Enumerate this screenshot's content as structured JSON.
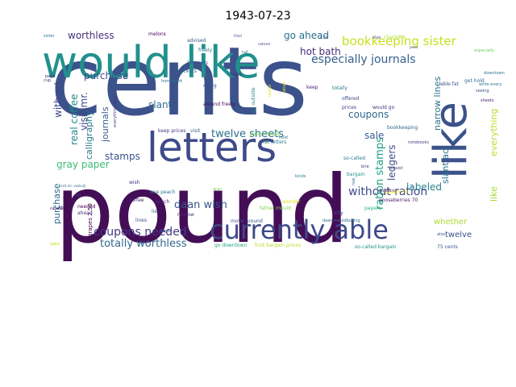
{
  "chart_data": {
    "type": "wordcloud",
    "title": "1943-07-23",
    "words": [
      {
        "text": "cents",
        "weight": 100,
        "color": "#3b528b"
      },
      {
        "text": "pound",
        "weight": 98,
        "color": "#440e57"
      },
      {
        "text": "would like",
        "weight": 62,
        "color": "#21908d"
      },
      {
        "text": "letters",
        "weight": 50,
        "color": "#3e4a89"
      },
      {
        "text": "like",
        "weight": 47,
        "color": "#3b528b"
      },
      {
        "text": "currently able",
        "weight": 40,
        "color": "#3e4a89"
      },
      {
        "text": "bookkeeping sister",
        "weight": 16,
        "color": "#c8e020"
      },
      {
        "text": "especially journals",
        "weight": 16,
        "color": "#355f8d"
      },
      {
        "text": "twelve sheets",
        "weight": 15,
        "color": "#2c728e"
      },
      {
        "text": "coupons needed",
        "weight": 15,
        "color": "#443a83"
      },
      {
        "text": "without ration",
        "weight": 15,
        "color": "#3e4a89"
      },
      {
        "text": "totally worthless",
        "weight": 13,
        "color": "#31688e"
      },
      {
        "text": "daan wish",
        "weight": 13,
        "color": "#39568c"
      },
      {
        "text": "ration stamps",
        "weight": 13,
        "color": "#20a386"
      },
      {
        "text": "worthless",
        "weight": 12,
        "color": "#46327e"
      },
      {
        "text": "go ahead",
        "weight": 12,
        "color": "#2d708e"
      },
      {
        "text": "hot bath",
        "weight": 12,
        "color": "#472c7a"
      },
      {
        "text": "purchase",
        "weight": 12,
        "color": "#3f4889"
      },
      {
        "text": "visit mr.",
        "weight": 12,
        "color": "#414487"
      },
      {
        "text": "without",
        "weight": 12,
        "color": "#404688"
      },
      {
        "text": "real coffee",
        "weight": 12,
        "color": "#24868e"
      },
      {
        "text": "calligraphy",
        "weight": 11,
        "color": "#2a788e"
      },
      {
        "text": "journals",
        "weight": 11,
        "color": "#375b8d"
      },
      {
        "text": "slant",
        "weight": 12,
        "color": "#2f6c8e"
      },
      {
        "text": "gray paper",
        "weight": 12,
        "color": "#3dbc74"
      },
      {
        "text": "stamps",
        "weight": 12,
        "color": "#3b528b"
      },
      {
        "text": "coupons",
        "weight": 12,
        "color": "#31688e"
      },
      {
        "text": "sale",
        "weight": 12,
        "color": "#355f8d"
      },
      {
        "text": "ledgers",
        "weight": 12,
        "color": "#3e4c8a"
      },
      {
        "text": "labeled",
        "weight": 12,
        "color": "#26828e"
      },
      {
        "text": "narrow lines",
        "weight": 11,
        "color": "#2e6f8e"
      },
      {
        "text": "slant ac",
        "weight": 11,
        "color": "#2a768e"
      },
      {
        "text": "everything",
        "weight": 11,
        "color": "#b5de2b"
      },
      {
        "text": "like",
        "weight": 11,
        "color": "#a5db36"
      },
      {
        "text": "whether",
        "weight": 10,
        "color": "#addc30"
      },
      {
        "text": "twelve",
        "weight": 10,
        "color": "#3b528b"
      },
      {
        "text": "purchase",
        "weight": 11,
        "color": "#31688e"
      },
      {
        "text": "grapes 2.50",
        "weight": 7,
        "color": "#440154"
      },
      {
        "text": "one peach",
        "weight": 6,
        "color": "#2a788e"
      },
      {
        "text": "peach",
        "weight": 6,
        "color": "#482878"
      },
      {
        "text": "keep prices",
        "weight": 6,
        "color": "#453781"
      },
      {
        "text": "visit",
        "weight": 6,
        "color": "#34618d"
      },
      {
        "text": "peter mould",
        "weight": 6,
        "color": "#7ad151"
      },
      {
        "text": "fat letters",
        "weight": 6,
        "color": "#287d8e"
      },
      {
        "text": "bookkeeping",
        "weight": 6,
        "color": "#31688e"
      },
      {
        "text": "so-called",
        "weight": 6,
        "color": "#2a788e"
      },
      {
        "text": "bargain",
        "weight": 6,
        "color": "#1f948c"
      },
      {
        "text": "around freely",
        "weight": 6,
        "color": "#46085c"
      },
      {
        "text": "50 cents",
        "weight": 6,
        "color": "#3e4a89"
      },
      {
        "text": "70 cents",
        "weight": 6,
        "color": "#31688e"
      },
      {
        "text": "advised",
        "weight": 6,
        "color": "#39558c"
      },
      {
        "text": "freely",
        "weight": 6,
        "color": "#2b758e"
      },
      {
        "text": "cake",
        "weight": 6,
        "color": "#472d7b"
      },
      {
        "text": "dying",
        "weight": 6,
        "color": "#3b528b"
      },
      {
        "text": "homework",
        "weight": 5,
        "color": "#2c718e"
      },
      {
        "text": "wish",
        "weight": 6,
        "color": "#46337e"
      },
      {
        "text": "coffee",
        "weight": 6,
        "color": "#482173"
      },
      {
        "text": "lie",
        "weight": 6,
        "color": "#2d708e"
      },
      {
        "text": "needed",
        "weight": 6,
        "color": "#440154"
      },
      {
        "text": "ahead",
        "weight": 6,
        "color": "#453581"
      },
      {
        "text": "lines",
        "weight": 6,
        "color": "#3c4f8a"
      },
      {
        "text": "father mould",
        "weight": 6,
        "color": "#7fd34e"
      },
      {
        "text": "move around",
        "weight": 6,
        "color": "#3b528b"
      },
      {
        "text": "go downtown",
        "weight": 6,
        "color": "#21a685"
      },
      {
        "text": "fruit bargain prices",
        "weight": 6,
        "color": "#b8de29"
      },
      {
        "text": "so-called bargain",
        "weight": 6,
        "color": "#20928c"
      },
      {
        "text": "75 cents",
        "weight": 6,
        "color": "#3b528b"
      },
      {
        "text": "gooseberries 70",
        "weight": 6,
        "color": "#481a6c"
      },
      {
        "text": "daan mouldbuking",
        "weight": 5,
        "color": "#2e6e8e"
      },
      {
        "text": "wonder",
        "weight": 6,
        "color": "#dde318"
      },
      {
        "text": "narrow",
        "weight": 6,
        "color": "#482878"
      },
      {
        "text": "papers",
        "weight": 6,
        "color": "#29af7f"
      },
      {
        "text": "silly",
        "weight": 6,
        "color": "#3e4a89"
      },
      {
        "text": "peach 50",
        "weight": 6,
        "color": "#fde725"
      },
      {
        "text": "totally",
        "weight": 6,
        "color": "#2a788e"
      },
      {
        "text": "get hold",
        "weight": 6,
        "color": "#31688e"
      },
      {
        "text": "able fat",
        "weight": 6,
        "color": "#3b528b"
      },
      {
        "text": "downtown",
        "weight": 5,
        "color": "#2a788e"
      },
      {
        "text": "keep",
        "weight": 6,
        "color": "#481f70"
      },
      {
        "text": "prices",
        "weight": 6,
        "color": "#414487"
      },
      {
        "text": "offered",
        "weight": 6,
        "color": "#3e4a89"
      },
      {
        "text": "would go",
        "weight": 6,
        "color": "#46317e"
      },
      {
        "text": "especially",
        "weight": 5,
        "color": "#6ccd5a"
      },
      {
        "text": "charlotte",
        "weight": 6,
        "color": "#b0dd2f"
      },
      {
        "text": "else",
        "weight": 5,
        "color": "#3b528b"
      },
      {
        "text": "melons",
        "weight": 6,
        "color": "#440154"
      },
      {
        "text": "sister",
        "weight": 5,
        "color": "#2a788e"
      },
      {
        "text": "cup",
        "weight": 5,
        "color": "#443983"
      },
      {
        "text": "page",
        "weight": 5,
        "color": "#482475"
      },
      {
        "text": "go outside",
        "weight": 6,
        "color": "#25858e"
      },
      {
        "text": "everything else",
        "weight": 5,
        "color": "#46337e"
      },
      {
        "text": "bath",
        "weight": 6,
        "color": "#3b528b"
      },
      {
        "text": "spite",
        "weight": 5,
        "color": "#c2df23"
      },
      {
        "text": "begin",
        "weight": 5,
        "color": "#3b528b"
      },
      {
        "text": "50",
        "weight": 5,
        "color": "#3e4a89"
      },
      {
        "text": "2.50",
        "weight": 5,
        "color": "#3b528b"
      },
      {
        "text": "hold",
        "weight": 5,
        "color": "#2a788e"
      },
      {
        "text": "consist",
        "weight": 5,
        "color": "#46337e"
      },
      {
        "text": "guilders",
        "weight": 5,
        "color": "#481f70"
      },
      {
        "text": "notebooks",
        "weight": 5,
        "color": "#433e85"
      },
      {
        "text": "also",
        "weight": 5,
        "color": "#3b528b"
      },
      {
        "text": "write every",
        "weight": 5,
        "color": "#2a788e"
      },
      {
        "text": "ration",
        "weight": 5,
        "color": "#fde725"
      },
      {
        "text": "useful",
        "weight": 5,
        "color": "#dde318"
      },
      {
        "text": "seeing",
        "weight": 5,
        "color": "#3b528b"
      },
      {
        "text": "sheets",
        "weight": 5,
        "color": "#482878"
      },
      {
        "text": "brie",
        "weight": 5,
        "color": "#414487"
      },
      {
        "text": "real",
        "weight": 5,
        "color": "#2a788e"
      },
      {
        "text": "kinds",
        "weight": 5,
        "color": "#2a788e"
      },
      {
        "text": "gray",
        "weight": 5,
        "color": "#7ad151"
      },
      {
        "text": "filled",
        "weight": 4,
        "color": "#3b528b"
      },
      {
        "text": "mr. vosku",
        "weight": 4,
        "color": "#440154"
      },
      {
        "text": "half",
        "weight": 4,
        "color": "#31688e"
      },
      {
        "text": "peter",
        "weight": 4,
        "color": "#414487"
      },
      {
        "text": "visit mr. voskuijl",
        "weight": 4,
        "color": "#31688e"
      },
      {
        "text": "noticed",
        "weight": 4,
        "color": "#46337e"
      }
    ]
  }
}
